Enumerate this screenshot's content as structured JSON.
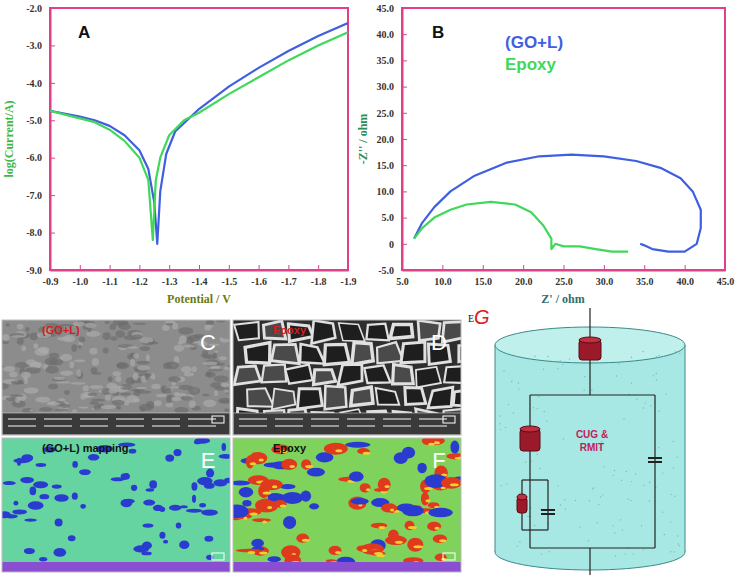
{
  "chart_data": [
    {
      "type": "line",
      "annotations": [
        "A"
      ],
      "x_label": "Potential / V",
      "y_label": "log(Current/A)",
      "xlim": [
        -0.9,
        -1.9
      ],
      "xticks": [
        {
          "value": -0.9,
          "label": "-0.9"
        },
        {
          "value": -1.0,
          "label": "-1.0"
        },
        {
          "value": -1.1,
          "label": "-1.1"
        },
        {
          "value": -1.2,
          "label": "-1.2"
        },
        {
          "value": -1.3,
          "label": "-1.3"
        },
        {
          "value": -1.4,
          "label": "-1.4"
        },
        {
          "value": -1.5,
          "label": "-1.5"
        },
        {
          "value": -1.6,
          "label": "-1.6"
        },
        {
          "value": -1.7,
          "label": "-1.7"
        },
        {
          "value": -1.8,
          "label": "-1.8"
        },
        {
          "value": -1.9,
          "label": "-1.9"
        }
      ],
      "ylim": [
        -9.0,
        -2.0
      ],
      "yticks": [
        {
          "value": -9.0,
          "label": "-9.0"
        },
        {
          "value": -8.0,
          "label": "-8.0"
        },
        {
          "value": -7.0,
          "label": "-7.0"
        },
        {
          "value": -6.0,
          "label": "-6.0"
        },
        {
          "value": -5.0,
          "label": "-5.0"
        },
        {
          "value": -4.0,
          "label": "-4.0"
        },
        {
          "value": -3.0,
          "label": "-3.0"
        },
        {
          "value": -2.0,
          "label": "-2.0"
        }
      ],
      "series": [
        {
          "color": "#3f5fe0",
          "x": [
            -0.9,
            -1.0,
            -1.05,
            -1.1,
            -1.15,
            -1.2,
            -1.23,
            -1.25,
            -1.26,
            -1.27,
            -1.29,
            -1.32,
            -1.4,
            -1.5,
            -1.6,
            -1.7,
            -1.8,
            -1.9
          ],
          "values": [
            -4.75,
            -4.9,
            -5.0,
            -5.15,
            -5.4,
            -5.8,
            -6.3,
            -7.2,
            -8.3,
            -6.9,
            -5.9,
            -5.3,
            -4.7,
            -4.1,
            -3.6,
            -3.15,
            -2.75,
            -2.4
          ]
        },
        {
          "color": "#3fd85a",
          "x": [
            -0.9,
            -1.0,
            -1.05,
            -1.1,
            -1.15,
            -1.2,
            -1.23,
            -1.245,
            -1.255,
            -1.27,
            -1.3,
            -1.35,
            -1.4,
            -1.5,
            -1.6,
            -1.7,
            -1.8,
            -1.9
          ],
          "values": [
            -4.75,
            -4.95,
            -5.05,
            -5.25,
            -5.55,
            -6.0,
            -6.6,
            -8.2,
            -6.6,
            -6.0,
            -5.4,
            -5.0,
            -4.8,
            -4.3,
            -3.85,
            -3.4,
            -3.0,
            -2.65
          ]
        }
      ]
    },
    {
      "type": "line",
      "annotations": [
        "B"
      ],
      "x_label": "Z' / ohm",
      "y_label": "-Z'' / ohm",
      "legend": "upper center",
      "xlim": [
        5.0,
        45.0
      ],
      "xticks": [
        {
          "value": 5,
          "label": "5.0"
        },
        {
          "value": 10,
          "label": "10.0"
        },
        {
          "value": 15,
          "label": "15.0"
        },
        {
          "value": 20,
          "label": "20.0"
        },
        {
          "value": 25,
          "label": "25.0"
        },
        {
          "value": 30,
          "label": "30.0"
        },
        {
          "value": 35,
          "label": "35.0"
        },
        {
          "value": 40,
          "label": "40.0"
        },
        {
          "value": 45,
          "label": "45.0"
        }
      ],
      "ylim": [
        -5.0,
        45.0
      ],
      "yticks": [
        {
          "value": -5,
          "label": "-5.0"
        },
        {
          "value": 0,
          "label": "0"
        },
        {
          "value": 5,
          "label": "5.0"
        },
        {
          "value": 10,
          "label": "10.0"
        },
        {
          "value": 15,
          "label": "15.0"
        },
        {
          "value": 20,
          "label": "20.0"
        },
        {
          "value": 25,
          "label": "25.0"
        },
        {
          "value": 30,
          "label": "30.0"
        },
        {
          "value": 35,
          "label": "35.0"
        },
        {
          "value": 40,
          "label": "40.0"
        },
        {
          "value": 45,
          "label": "45.0"
        }
      ],
      "series": [
        {
          "name": "(GO+L)",
          "color": "#3f5fe0",
          "x": [
            6.5,
            7.5,
            9,
            11,
            14,
            18,
            22,
            26,
            30,
            34,
            37,
            39.5,
            41,
            42,
            42,
            41.5,
            40,
            38,
            36,
            35,
            34.5
          ],
          "values": [
            1,
            4,
            7,
            10,
            13,
            15.5,
            16.7,
            17,
            16.7,
            15.8,
            14.5,
            12.5,
            10,
            6.5,
            3,
            0,
            -1.5,
            -1.5,
            -1,
            -0.3,
            0
          ]
        },
        {
          "name": "Epoxy",
          "color": "#3fd85a",
          "x": [
            6.5,
            7.5,
            9,
            11,
            13,
            16,
            19,
            21,
            22.5,
            23.5,
            23.5,
            24,
            25,
            27,
            29,
            31,
            33
          ],
          "values": [
            1,
            3,
            5,
            6.5,
            7.5,
            8,
            7.5,
            6,
            3.5,
            1,
            -1,
            0,
            -0.5,
            -0.5,
            -1,
            -1.5,
            -1.5
          ]
        }
      ]
    }
  ],
  "panels": [
    {
      "label": "C",
      "title": "(GO+L)"
    },
    {
      "label": "D",
      "title": "Epoxy"
    },
    {
      "label": "E",
      "title": "(GO+L) mapping"
    },
    {
      "label": "F",
      "title": "Epoxy"
    }
  ],
  "diagram": {
    "labels": [
      "E",
      "G"
    ],
    "component_lines": [
      "CUG &",
      "RMIT"
    ]
  }
}
